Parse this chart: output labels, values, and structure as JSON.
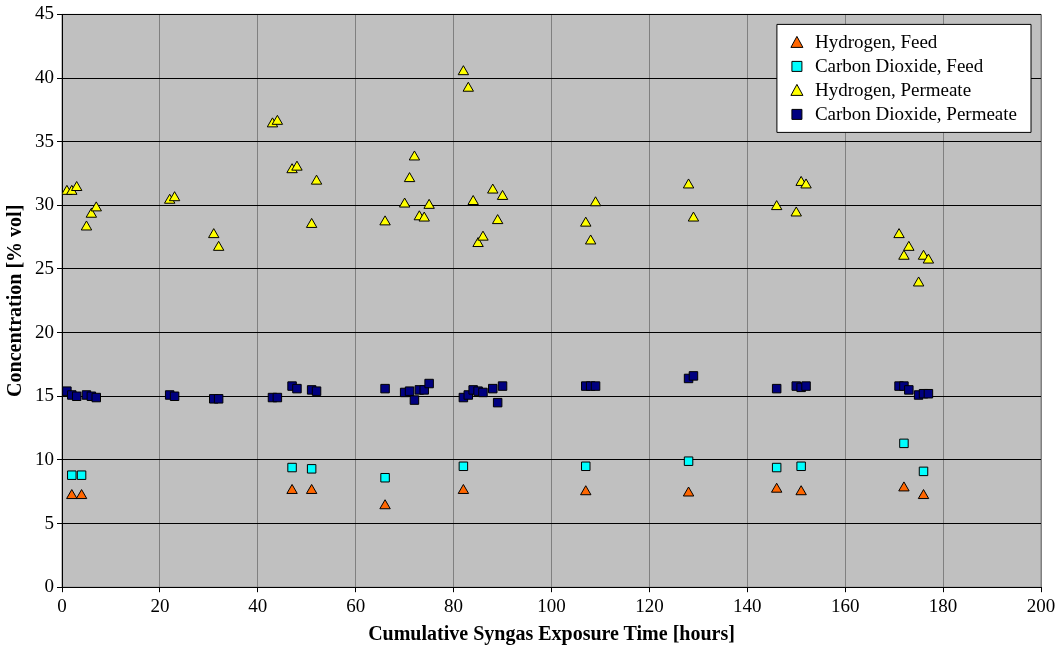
{
  "chart_data": {
    "type": "scatter",
    "xlabel": "Cumulative Syngas Exposure Time [hours]",
    "ylabel": "Concentration [% vol]",
    "xlim": [
      0,
      200
    ],
    "xticks": [
      0,
      20,
      40,
      60,
      80,
      100,
      120,
      140,
      160,
      180,
      200
    ],
    "ylim": [
      0,
      45
    ],
    "yticks": [
      0,
      5,
      10,
      15,
      20,
      25,
      30,
      35,
      40,
      45
    ],
    "grid": true,
    "legend": "top right",
    "series": [
      {
        "name": "Hydrogen, Feed",
        "color": "#ff6600",
        "marker": "triangle",
        "x": [
          2,
          4,
          47,
          51,
          66,
          82,
          107,
          128,
          146,
          151,
          172,
          176
        ],
        "values": [
          7.2,
          7.2,
          7.6,
          7.6,
          6.4,
          7.6,
          7.5,
          7.4,
          7.7,
          7.5,
          7.8,
          7.2
        ]
      },
      {
        "name": "Carbon Dioxide, Feed",
        "color": "#00ffff",
        "marker": "square",
        "x": [
          2,
          4,
          47,
          51,
          66,
          82,
          107,
          128,
          146,
          151,
          172,
          176
        ],
        "values": [
          8.8,
          8.8,
          9.4,
          9.3,
          8.6,
          9.5,
          9.5,
          9.9,
          9.4,
          9.5,
          11.3,
          9.1
        ]
      },
      {
        "name": "Hydrogen, Permeate",
        "color": "#ffff00",
        "marker": "triangle",
        "x": [
          1,
          2,
          3,
          5,
          6,
          7,
          22,
          23,
          31,
          32,
          43,
          44,
          47,
          48,
          51,
          52,
          66,
          70,
          71,
          72,
          73,
          74,
          75,
          82,
          83,
          84,
          85,
          86,
          88,
          89,
          90,
          107,
          108,
          109,
          128,
          129,
          146,
          150,
          151,
          152,
          171,
          172,
          173,
          175,
          176,
          177
        ],
        "values": [
          31.1,
          31.1,
          31.4,
          28.3,
          29.3,
          29.8,
          30.4,
          30.6,
          27.7,
          26.7,
          36.4,
          36.6,
          32.8,
          33.0,
          28.5,
          31.9,
          28.7,
          30.1,
          32.1,
          33.8,
          29.1,
          29.0,
          30.0,
          40.5,
          39.2,
          30.3,
          27.0,
          27.5,
          31.2,
          28.8,
          30.7,
          28.6,
          27.2,
          30.2,
          31.6,
          29.0,
          29.9,
          29.4,
          31.8,
          31.6,
          27.7,
          26.0,
          26.7,
          23.9,
          26.0,
          25.7
        ]
      },
      {
        "name": "Carbon Dioxide, Permeate",
        "color": "#000080",
        "marker": "square",
        "x": [
          1,
          2,
          3,
          5,
          6,
          7,
          22,
          23,
          31,
          32,
          43,
          44,
          47,
          48,
          51,
          52,
          66,
          70,
          71,
          72,
          73,
          74,
          75,
          82,
          83,
          84,
          85,
          86,
          88,
          89,
          90,
          107,
          108,
          109,
          128,
          129,
          146,
          150,
          151,
          152,
          171,
          172,
          173,
          175,
          176,
          177
        ],
        "values": [
          15.4,
          15.1,
          15.0,
          15.1,
          15.0,
          14.9,
          15.1,
          15.0,
          14.8,
          14.8,
          14.9,
          14.9,
          15.8,
          15.6,
          15.5,
          15.4,
          15.6,
          15.3,
          15.4,
          14.7,
          15.5,
          15.5,
          16.0,
          14.9,
          15.1,
          15.5,
          15.4,
          15.3,
          15.6,
          14.5,
          15.8,
          15.8,
          15.8,
          15.8,
          16.4,
          16.6,
          15.6,
          15.8,
          15.7,
          15.8,
          15.8,
          15.8,
          15.5,
          15.1,
          15.2,
          15.2
        ]
      }
    ]
  }
}
